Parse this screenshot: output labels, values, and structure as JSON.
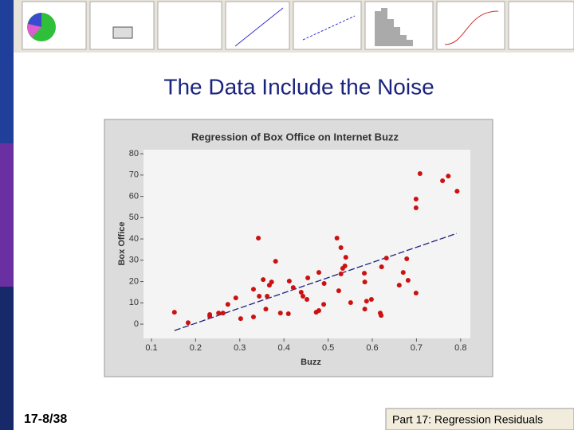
{
  "slide": {
    "title": "The Data Include the Noise",
    "page_number": "17-8/38",
    "footer": "Part 17: Regression Residuals"
  },
  "chart_data": {
    "type": "scatter",
    "title": "Regression of Box Office on Internet Buzz",
    "x_label": "Buzz",
    "y_label": "Box Office",
    "x": [
      0.152,
      0.183,
      0.232,
      0.232,
      0.252,
      0.262,
      0.273,
      0.291,
      0.302,
      0.331,
      0.331,
      0.344,
      0.342,
      0.353,
      0.359,
      0.362,
      0.367,
      0.372,
      0.381,
      0.392,
      0.41,
      0.412,
      0.421,
      0.439,
      0.443,
      0.452,
      0.454,
      0.473,
      0.479,
      0.479,
      0.49,
      0.491,
      0.52,
      0.524,
      0.529,
      0.529,
      0.533,
      0.538,
      0.54,
      0.551,
      0.582,
      0.583,
      0.583,
      0.587,
      0.598,
      0.618,
      0.62,
      0.621,
      0.632,
      0.661,
      0.67,
      0.678,
      0.681,
      0.699,
      0.699,
      0.699,
      0.708,
      0.759,
      0.772,
      0.792
    ],
    "values": [
      5.6,
      0.7,
      3.7,
      4.5,
      5.2,
      5.2,
      9.3,
      12.3,
      2.6,
      3.4,
      16.4,
      13.1,
      40.4,
      20.9,
      7.1,
      13.1,
      18.3,
      19.8,
      29.5,
      5.2,
      4.9,
      20.2,
      17.2,
      15.0,
      13.1,
      11.6,
      21.7,
      5.6,
      6.4,
      24.3,
      9.3,
      19.1,
      40.4,
      15.7,
      35.9,
      23.6,
      26.2,
      27.3,
      31.4,
      10.1,
      23.9,
      7.1,
      19.8,
      10.8,
      11.6,
      5.2,
      4.1,
      26.9,
      31.0,
      18.3,
      24.3,
      30.7,
      20.6,
      14.6,
      54.6,
      58.7,
      70.7,
      67.3,
      69.5,
      62.4
    ],
    "color": "#cc1111",
    "fit": {
      "x": [
        0.152,
        0.791
      ],
      "values": [
        -3.0,
        42.6
      ],
      "color": "#1a237e"
    },
    "xlim": [
      0.082,
      0.822
    ],
    "ylim": [
      -6.7,
      81.9
    ],
    "xticks": [
      0.1,
      0.2,
      0.3,
      0.4,
      0.5,
      0.6,
      0.7,
      0.8
    ],
    "yticks": [
      0,
      10,
      20,
      30,
      40,
      50,
      60,
      70,
      80
    ]
  }
}
